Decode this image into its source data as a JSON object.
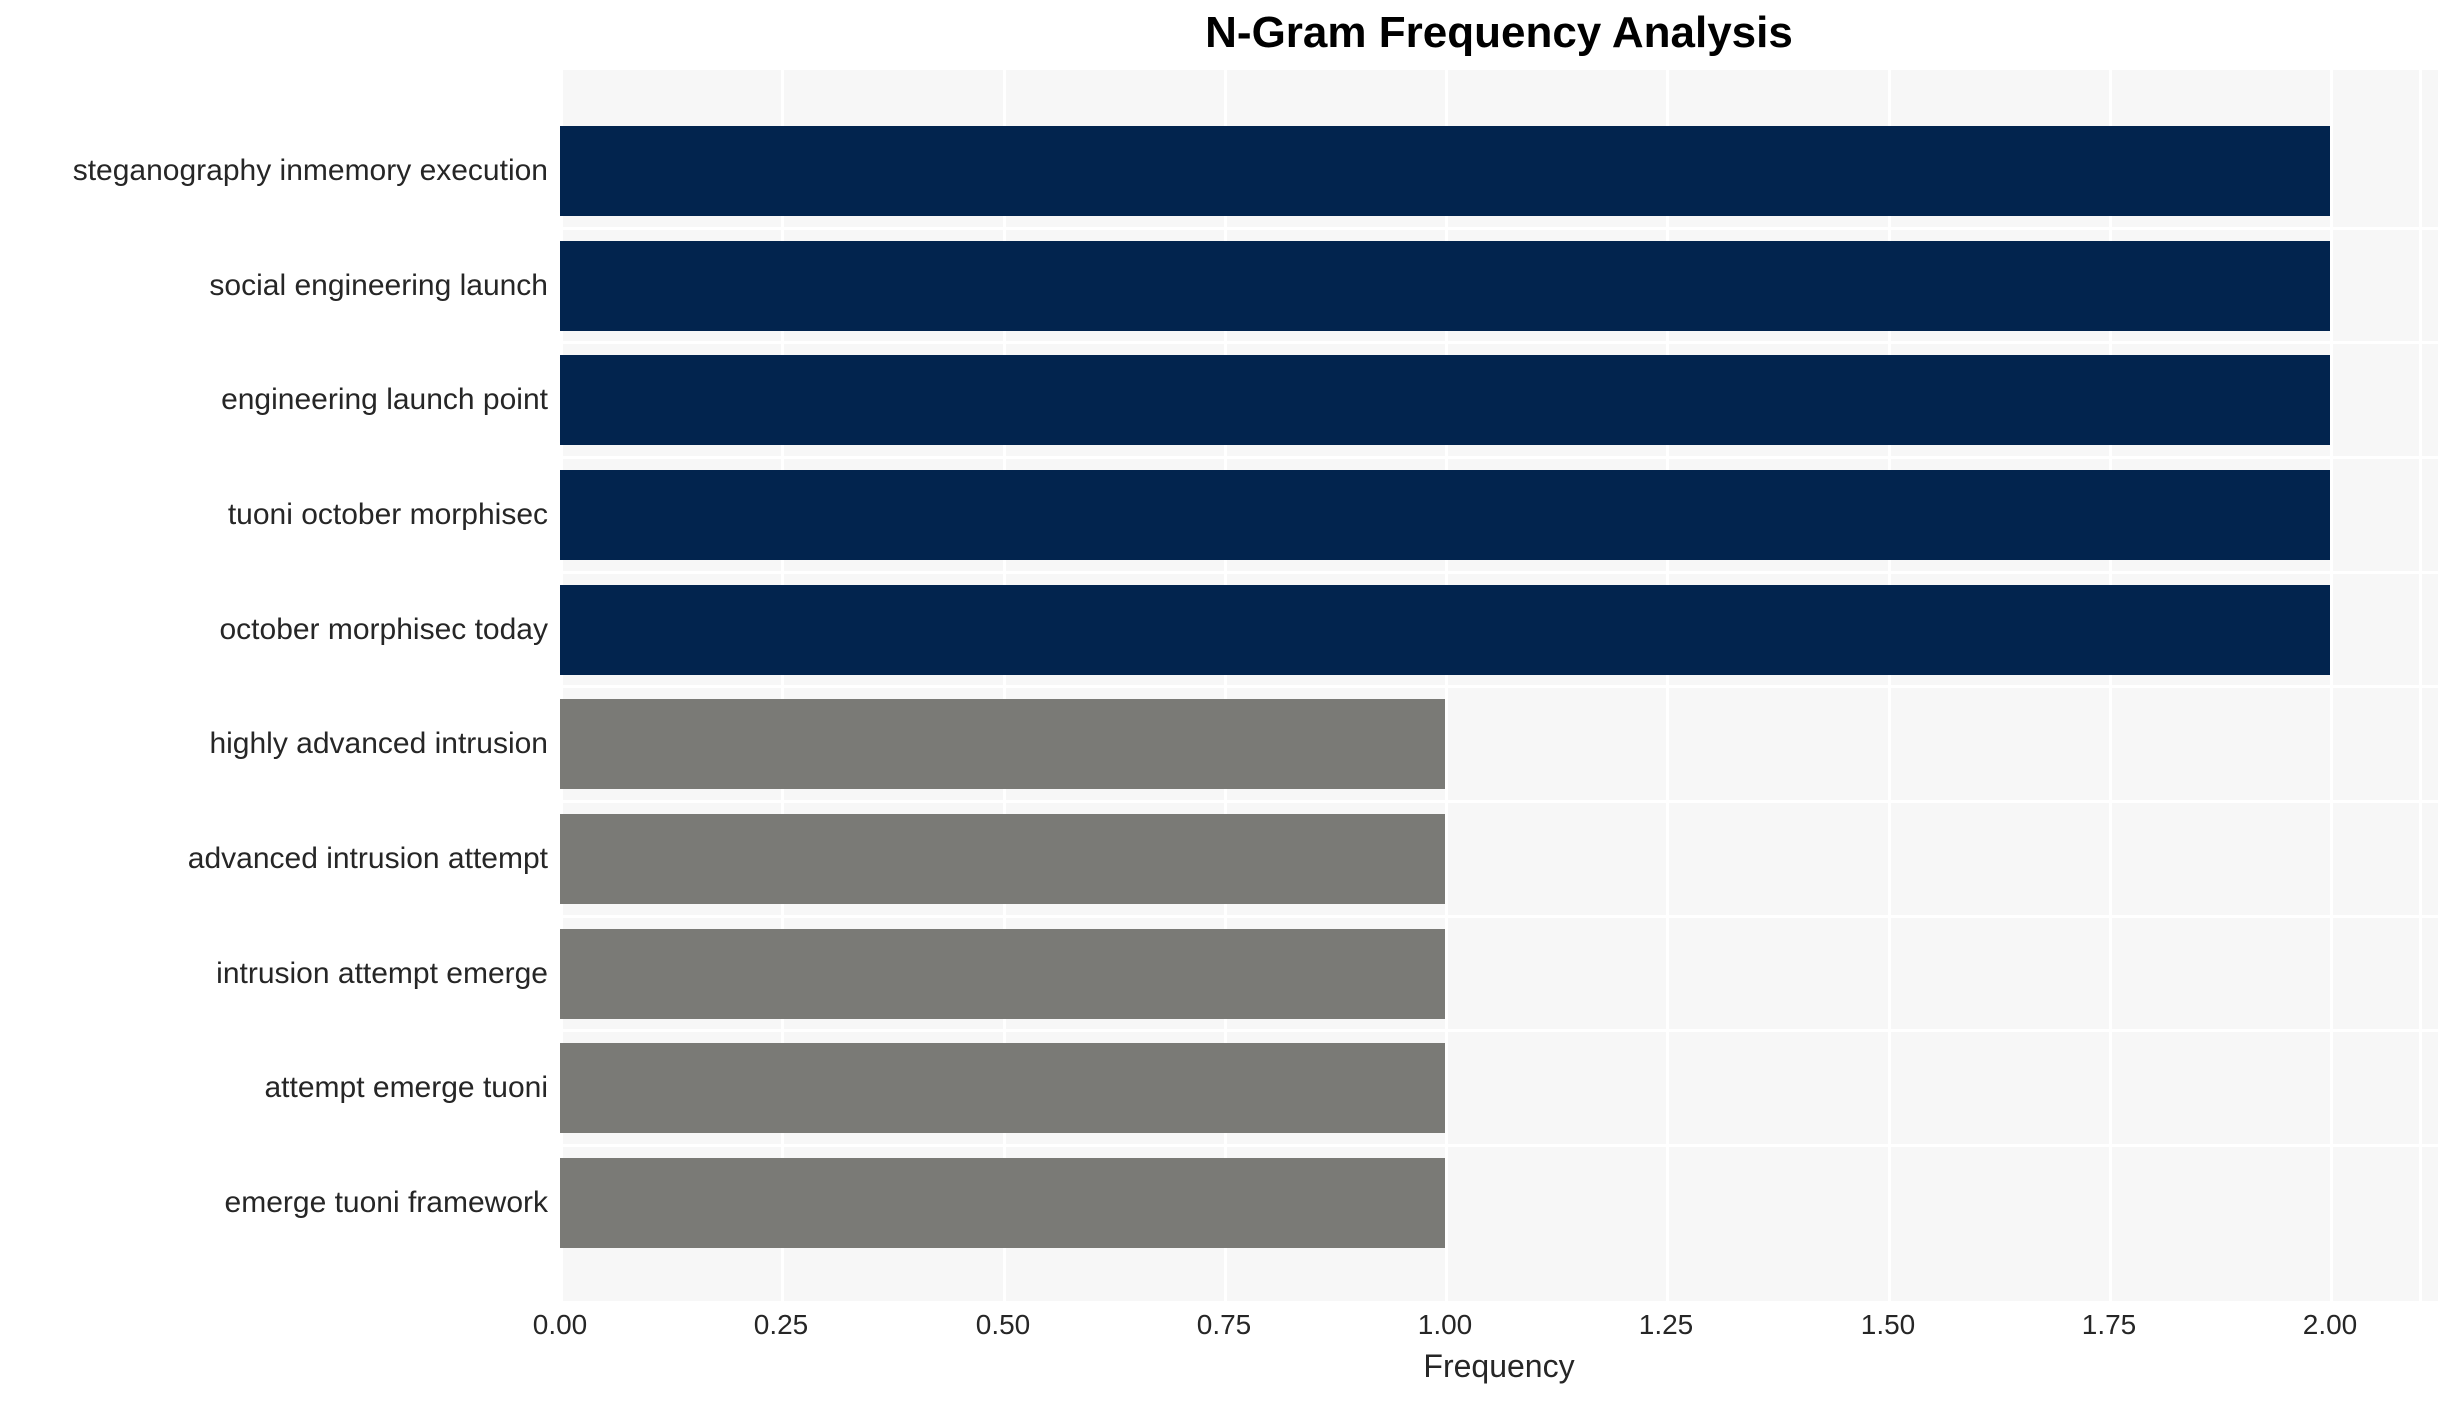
{
  "chart_data": {
    "type": "bar",
    "orientation": "horizontal",
    "title": "N-Gram Frequency Analysis",
    "xlabel": "Frequency",
    "ylabel": "",
    "categories": [
      "steganography inmemory execution",
      "social engineering launch",
      "engineering launch point",
      "tuoni october morphisec",
      "october morphisec today",
      "highly advanced intrusion",
      "advanced intrusion attempt",
      "intrusion attempt emerge",
      "attempt emerge tuoni",
      "emerge tuoni framework"
    ],
    "values": [
      2.0,
      2.0,
      2.0,
      2.0,
      2.0,
      1.0,
      1.0,
      1.0,
      1.0,
      1.0
    ],
    "bar_colors": [
      "#02244e",
      "#02244e",
      "#02244e",
      "#02244e",
      "#02244e",
      "#7a7a76",
      "#7a7a76",
      "#7a7a76",
      "#7a7a76",
      "#7a7a76"
    ],
    "x_ticks": [
      0.0,
      0.25,
      0.5,
      0.75,
      1.0,
      1.25,
      1.5,
      1.75,
      2.0
    ],
    "x_tick_labels": [
      "0.00",
      "0.25",
      "0.50",
      "0.75",
      "1.00",
      "1.25",
      "1.50",
      "1.75",
      "2.00"
    ],
    "xlim": [
      0.0,
      2.12
    ],
    "grid": "on",
    "legend": "none",
    "colors": {
      "navy_bar": "#02244e",
      "gray_bar": "#7a7a76",
      "plot_background": "#f7f7f7",
      "gridline": "#ffffff",
      "text": "#262626",
      "title_text": "#000000",
      "figure_background": "#ffffff"
    }
  }
}
